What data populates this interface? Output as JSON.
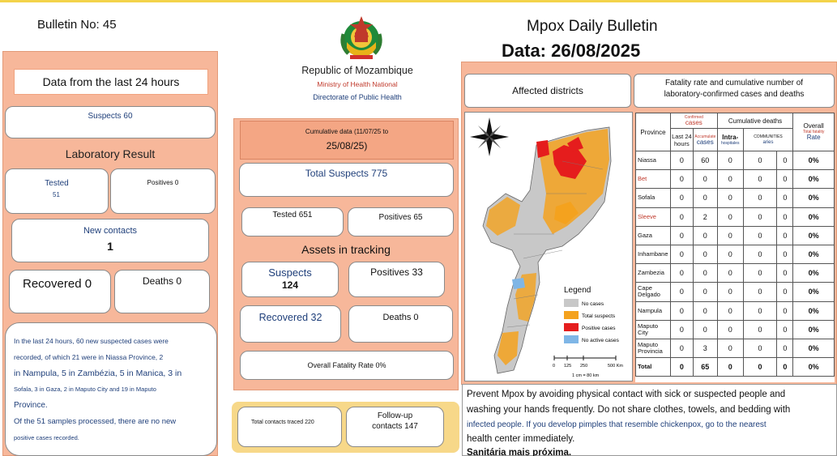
{
  "header": {
    "bulletin_no": "Bulletin No: 45",
    "republic": "Republic of Mozambique",
    "ministry": "Ministry of Health National",
    "directorate": "Directorate of Public Health",
    "title": "Mpox Daily Bulletin",
    "date": "Data: 26/08/2025"
  },
  "left": {
    "last24_label": "Data from the last 24 hours",
    "suspects": "Suspects 60",
    "lab_title": "Laboratory Result",
    "tested_label": "Tested",
    "tested_value": "51",
    "positives": "Positives 0",
    "new_contacts_label": "New contacts",
    "new_contacts_value": "1",
    "recovered": "Recovered 0",
    "deaths": "Deaths 0",
    "summary": [
      "In the last 24 hours, 60 new suspected cases were",
      "recorded, of which 21 were in Niassa Province, 2",
      "in Nampula, 5 in Zambézia, 5 in Manica, 3 in",
      "Sofala, 3 in Gaza, 2 in Maputo City and 19 in Maputo",
      "Province.",
      "Of the 51 samples processed, there are no new",
      "positive cases recorded."
    ]
  },
  "middle": {
    "cumulative_line1": "Cumulative data (11/07/25 to",
    "cumulative_line2": "25/08/25)",
    "total_suspects": "Total Suspects 775",
    "tested": "Tested 651",
    "positives": "Positives 65",
    "assets_title": "Assets in tracking",
    "suspects_label": "Suspects",
    "suspects_value": "124",
    "positives33": "Positives 33",
    "recovered": "Recovered 32",
    "deaths": "Deaths 0",
    "fatality": "Overall Fatality Rate 0%",
    "contacts_traced": "Total contacts traced 220",
    "followup_line1": "Follow-up",
    "followup_line2": "contacts 147"
  },
  "right": {
    "affected": "Affected districts",
    "fatality_line1": "Fatality rate and cumulative number of",
    "fatality_line2": "laboratory-confirmed cases and deaths",
    "legend_title": "Legend",
    "legend": [
      {
        "label": "No cases",
        "color": "#c8c8c8"
      },
      {
        "label": "Total suspects",
        "color": "#f4a21e"
      },
      {
        "label": "Positive cases",
        "color": "#e51d1d"
      },
      {
        "label": "No active cases",
        "color": "#7fb6e6"
      }
    ],
    "scale_labels": [
      "0",
      "125",
      "250",
      "500 Km"
    ],
    "scale_note": "1 cm = 80 km",
    "compass": "N",
    "table": {
      "h_province": "Province",
      "h_confirmed_small": "Confirmed",
      "h_cases": "cases",
      "h_last24": "Last 24 hours",
      "h_accumulate_small": "Accumulate",
      "h_cases2": "cases",
      "h_cumdeaths": "Cumulative deaths",
      "h_intra": "Intra-",
      "h_hospitals_small": "hospitales",
      "h_communities_small": "COMMUNITIES",
      "h_aries": "aries",
      "h_overall": "Overall",
      "h_totalfatality_small": "Total fatality",
      "h_rate": "Rate",
      "rows": [
        {
          "name": "Niassa",
          "c": [
            "0",
            "60",
            "0",
            "0",
            "0",
            "0%"
          ]
        },
        {
          "name": "Bet",
          "c": [
            "0",
            "0",
            "0",
            "0",
            "0",
            "0%"
          ]
        },
        {
          "name": "Sofala",
          "c": [
            "0",
            "0",
            "0",
            "0",
            "0",
            "0%"
          ]
        },
        {
          "name": "Sleeve",
          "c": [
            "0",
            "2",
            "0",
            "0",
            "0",
            "0%"
          ]
        },
        {
          "name": "Gaza",
          "c": [
            "0",
            "0",
            "0",
            "0",
            "0",
            "0%"
          ]
        },
        {
          "name": "Inhambane",
          "c": [
            "0",
            "0",
            "0",
            "0",
            "0",
            "0%"
          ]
        },
        {
          "name": "Zambezia",
          "c": [
            "0",
            "0",
            "0",
            "0",
            "0",
            "0%"
          ]
        },
        {
          "name": "Cape Delgado",
          "c": [
            "0",
            "0",
            "0",
            "0",
            "0",
            "0%"
          ]
        },
        {
          "name": "Nampula",
          "c": [
            "0",
            "0",
            "0",
            "0",
            "0",
            "0%"
          ]
        },
        {
          "name": "Maputo City",
          "c": [
            "0",
            "0",
            "0",
            "0",
            "0",
            "0%"
          ]
        },
        {
          "name": "Maputo Provincia",
          "c": [
            "0",
            "3",
            "0",
            "0",
            "0",
            "0%"
          ]
        },
        {
          "name": "Total",
          "c": [
            "0",
            "65",
            "0",
            "0",
            "0",
            "0%"
          ]
        }
      ]
    },
    "prevention_line1": "Prevent Mpox by avoiding physical contact with sick or suspected people and",
    "prevention_line2": "washing your hands frequently. Do not share clothes, towels, and bedding with",
    "prevention_line3": "infected people. If you develop pimples that resemble chickenpox, go to the nearest",
    "prevention_line4": "health center immediately.",
    "prevention_line5": "Sanitária mais próxima."
  }
}
